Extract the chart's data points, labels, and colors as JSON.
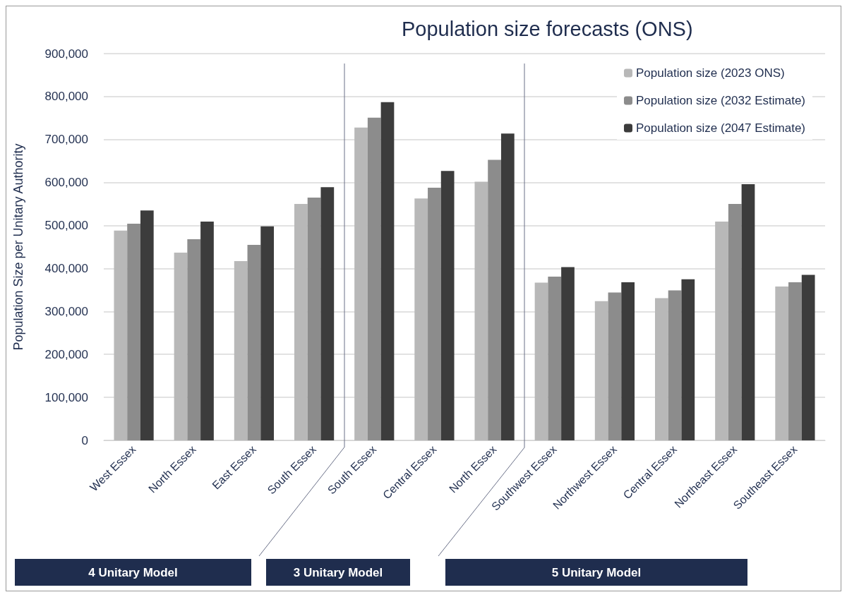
{
  "chart_data": {
    "type": "bar",
    "title": "Population size forecasts (ONS)",
    "ylabel": "Population Size per Unitary Authority",
    "categories": [
      "West Essex",
      "North Essex",
      "East Essex",
      "South Essex",
      "South Essex",
      "Central Essex",
      "North Essex",
      "Southwest Essex",
      "Northwest Essex",
      "Central Essex",
      "Northeast Essex",
      "Southeast Essex"
    ],
    "series": [
      {
        "name": "Population size (2023 ONS)",
        "color": "#b8b8b8",
        "values": [
          488000,
          437000,
          417000,
          550000,
          728000,
          563000,
          602000,
          367000,
          324000,
          331000,
          509000,
          358000
        ]
      },
      {
        "name": "Population size (2032 Estimate)",
        "color": "#8c8c8c",
        "values": [
          504000,
          468000,
          455000,
          565000,
          751000,
          588000,
          653000,
          381000,
          344000,
          349000,
          550000,
          368000
        ]
      },
      {
        "name": "Population size (2047 Estimate)",
        "color": "#3c3c3c",
        "values": [
          535000,
          509000,
          498000,
          589000,
          787000,
          627000,
          714000,
          403000,
          368000,
          375000,
          596000,
          385000
        ]
      }
    ],
    "ylim": [
      0,
      900000
    ],
    "yticks": [
      0,
      {
        "value": 100000,
        "label": "100,000"
      },
      {
        "value": 200000,
        "label": "200,000"
      },
      {
        "value": 300000,
        "label": "300,000"
      },
      {
        "value": 400000,
        "label": "400,000"
      },
      {
        "value": 500000,
        "label": "500,000"
      },
      {
        "value": 600000,
        "label": "600,000"
      },
      {
        "value": 700000,
        "label": "700,000"
      },
      {
        "value": 800000,
        "label": "800,000"
      },
      {
        "value": 900000,
        "label": "900,000"
      }
    ],
    "grid": "y",
    "legend": "top right",
    "annotations": [
      "4 Unitary Model",
      "3 Unitary Model",
      "5 Unitary Model"
    ]
  }
}
